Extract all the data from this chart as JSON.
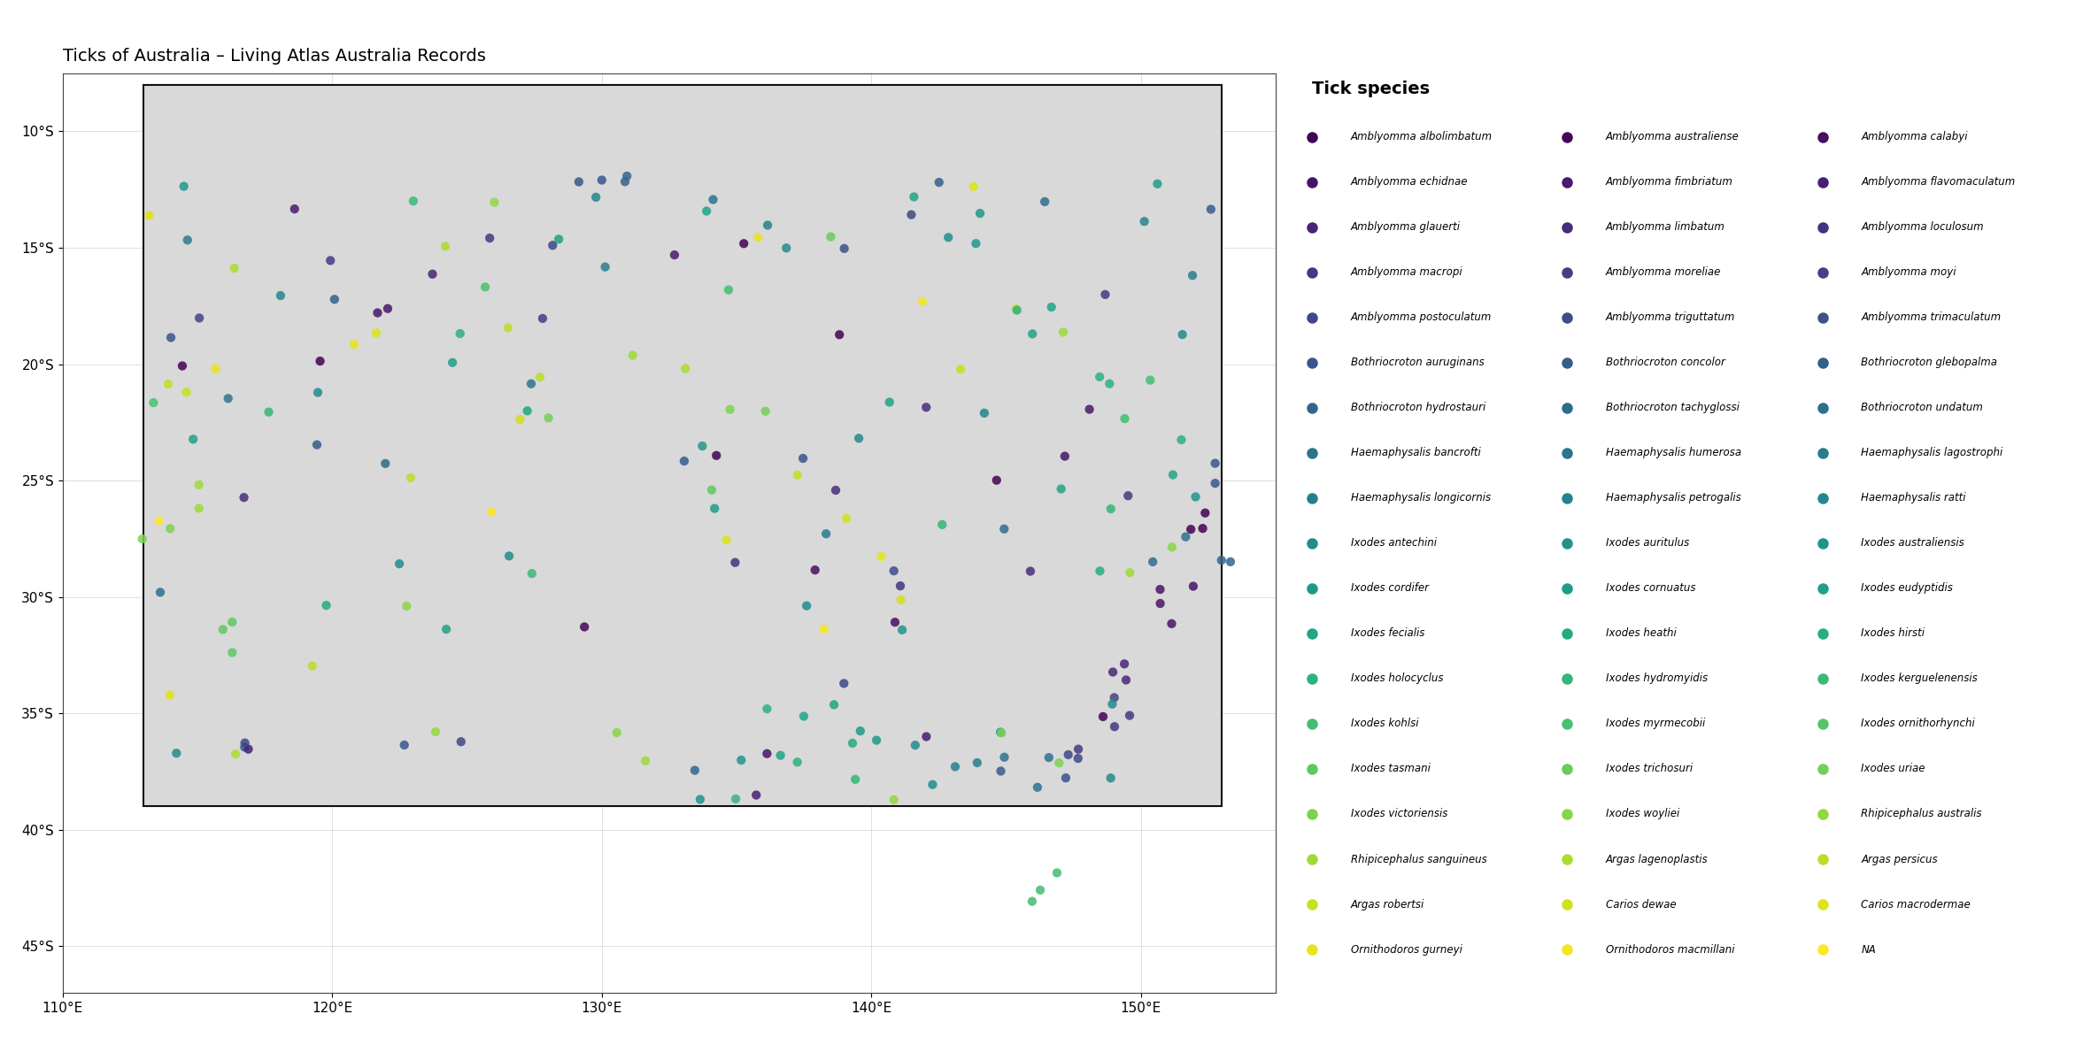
{
  "title": "Ticks of Australia – Living Atlas Australia Records",
  "legend_title": "Tick species",
  "xlim": [
    110,
    155
  ],
  "ylim": [
    -47,
    -7.5
  ],
  "background_color": "#ffffff",
  "map_fill": "#d9d9d9",
  "map_edge": "#111111",
  "state_edge": "#666666",
  "species": [
    {
      "name": "Amblyomma albolimbatum",
      "color": "#482173"
    },
    {
      "name": "Amblyomma australiense",
      "color": "#472475"
    },
    {
      "name": "Amblyomma calabyi",
      "color": "#433D84"
    },
    {
      "name": "Amblyomma echidnae",
      "color": "#3E4A89"
    },
    {
      "name": "Amblyomma fimbriatum",
      "color": "#38548C"
    },
    {
      "name": "Amblyomma flavomaculatum",
      "color": "#31628D"
    },
    {
      "name": "Amblyomma glauerti",
      "color": "#2D6F8E"
    },
    {
      "name": "Amblyomma limbatum",
      "color": "#287C8E"
    },
    {
      "name": "Amblyomma loculosum",
      "color": "#238A8D"
    },
    {
      "name": "Amblyomma macropi",
      "color": "#1F968B"
    },
    {
      "name": "Amblyomma moreliae",
      "color": "#20A386"
    },
    {
      "name": "Amblyomma moyi",
      "color": "#29AF7F"
    },
    {
      "name": "Amblyomma postoculatum",
      "color": "#3DBC74"
    },
    {
      "name": "Amblyomma triguttatum",
      "color": "#55C667"
    },
    {
      "name": "Amblyomma trimaculatum",
      "color": "#73D055"
    },
    {
      "name": "Bothriocroton auruginans",
      "color": "#95D840"
    },
    {
      "name": "Bothriocroton concolor",
      "color": "#B8DE29"
    },
    {
      "name": "Bothriocroton glebopalma",
      "color": "#DCE318"
    },
    {
      "name": "Bothriocroton hydrostauri",
      "color": "#FDE725"
    },
    {
      "name": "Bothriocroton tachyglossi",
      "color": "#287D8E"
    },
    {
      "name": "Bothriocroton undatum",
      "color": "#2E6E8E"
    },
    {
      "name": "Haemaphysalis bancrofti",
      "color": "#33628D"
    },
    {
      "name": "Haemaphysalis humerosa",
      "color": "#39558C"
    },
    {
      "name": "Haemaphysalis lagostrophi",
      "color": "#404688"
    },
    {
      "name": "Haemaphysalis longicornis",
      "color": "#453882"
    },
    {
      "name": "Haemaphysalis petrogalis",
      "color": "#472B7A"
    },
    {
      "name": "Haemaphysalis ratti",
      "color": "#481E70"
    },
    {
      "name": "Ixodes antechini",
      "color": "#471164"
    },
    {
      "name": "Ixodes auritulus",
      "color": "#440154"
    },
    {
      "name": "Ixodes australiensis",
      "color": "#1F968B"
    },
    {
      "name": "Ixodes cordifer",
      "color": "#20A386"
    },
    {
      "name": "Ixodes cornuatus",
      "color": "#29AF7F"
    },
    {
      "name": "Ixodes eudyptidis",
      "color": "#3DBC74"
    },
    {
      "name": "Ixodes fecialis",
      "color": "#55C667"
    },
    {
      "name": "Ixodes heathi",
      "color": "#73D055"
    },
    {
      "name": "Ixodes hirsti",
      "color": "#95D840"
    },
    {
      "name": "Ixodes holocyclus",
      "color": "#B8DE29"
    },
    {
      "name": "Ixodes hydromyidis",
      "color": "#DCE318"
    },
    {
      "name": "Ixodes kerguelenensis",
      "color": "#95D840"
    },
    {
      "name": "Ixodes kohlsi",
      "color": "#73D055"
    },
    {
      "name": "Ixodes myrmecobii",
      "color": "#55C667"
    },
    {
      "name": "Ixodes ornithorhynchi",
      "color": "#3DBC74"
    },
    {
      "name": "Ixodes tasmani",
      "color": "#29AF7F"
    },
    {
      "name": "Ixodes trichosuri",
      "color": "#20A386"
    },
    {
      "name": "Ixodes uriae",
      "color": "#1F968B"
    },
    {
      "name": "Ixodes victoriensis",
      "color": "#B8DE29"
    },
    {
      "name": "Ixodes woyliei",
      "color": "#DCE318"
    },
    {
      "name": "Rhipicephalus australis",
      "color": "#C2DF23"
    },
    {
      "name": "Rhipicephalus sanguineus",
      "color": "#C7E020"
    },
    {
      "name": "Argas lagenoplastis",
      "color": "#CBDF1E"
    },
    {
      "name": "Argas persicus",
      "color": "#CDDF1C"
    },
    {
      "name": "Argas robertsi",
      "color": "#D0E01A"
    },
    {
      "name": "Carios dewae",
      "color": "#E6E419"
    },
    {
      "name": "Carios macrodermae",
      "color": "#EFE51C"
    },
    {
      "name": "Ornithodoros gurneyi",
      "color": "#F5E626"
    },
    {
      "name": "Ornithodoros macmillani",
      "color": "#FDE725"
    },
    {
      "name": "NA",
      "color": "#888888"
    }
  ]
}
